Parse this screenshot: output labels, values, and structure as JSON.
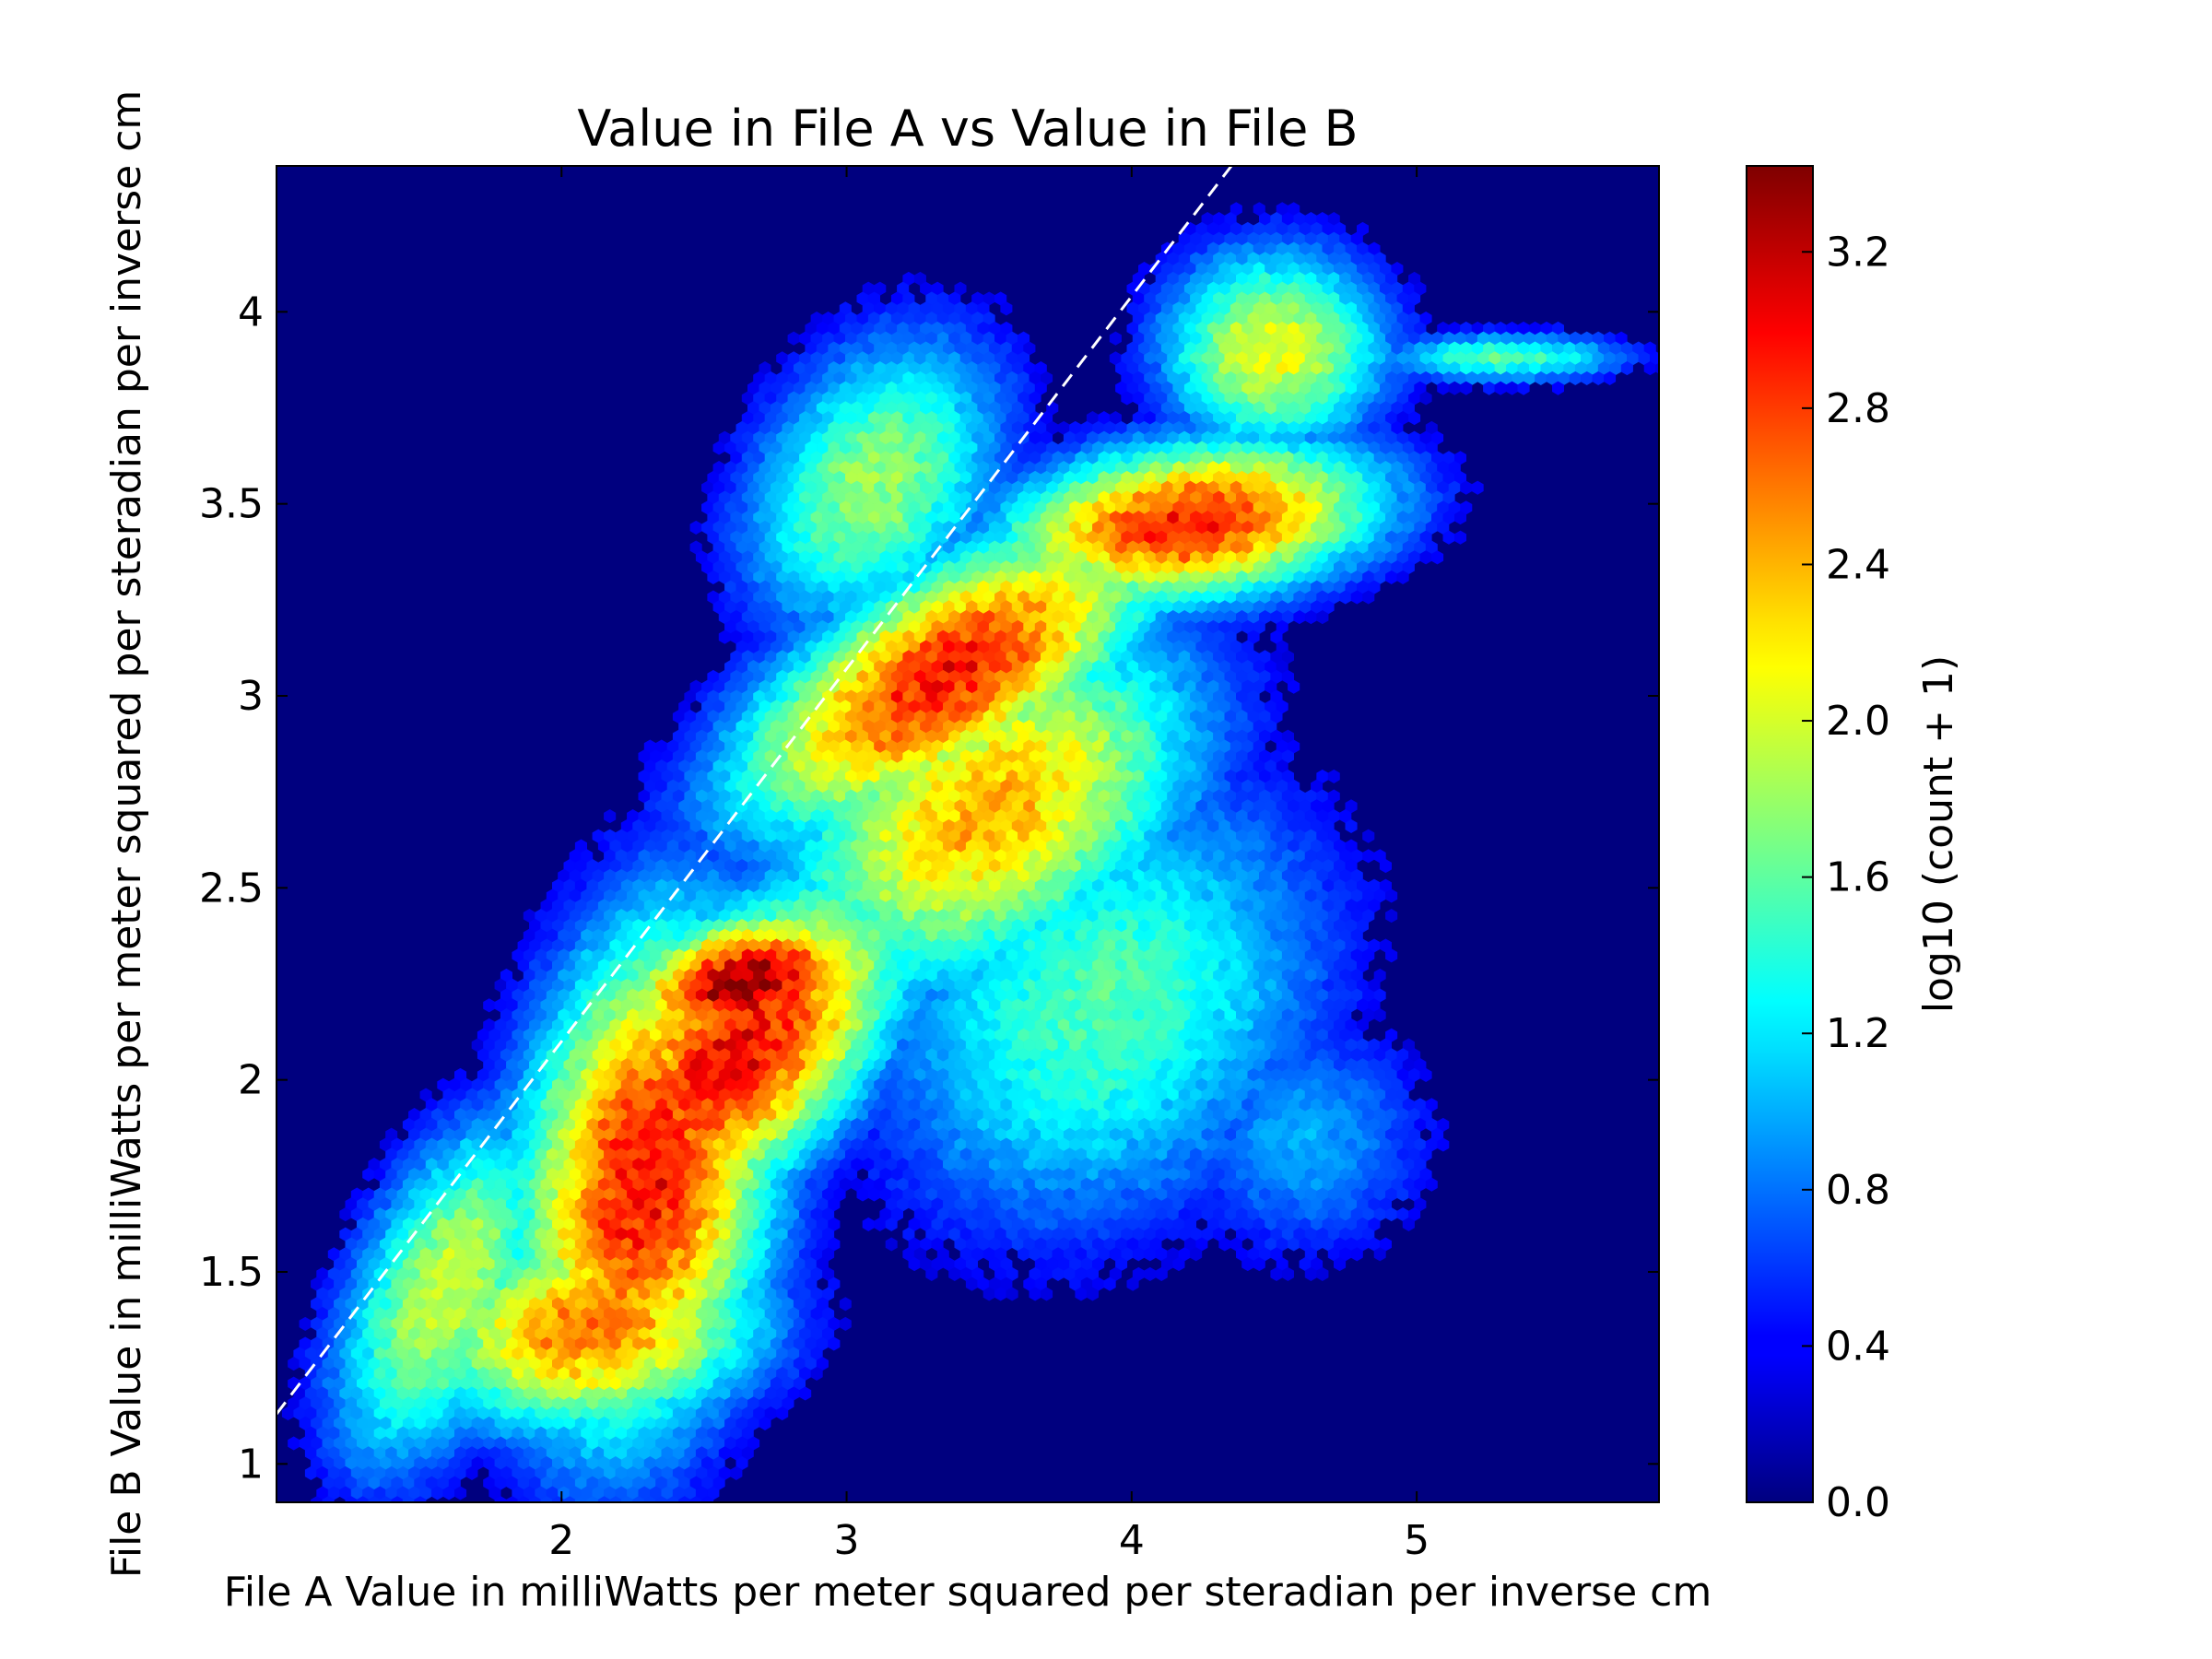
{
  "chart_data": {
    "type": "heatmap",
    "subtype": "hexbin",
    "title": "Value in File A vs Value in File B",
    "xlabel": "File A Value in milliWatts per meter squared per steradian per inverse cm",
    "ylabel": "File B Value in milliWatts per meter squared per steradian per inverse cm",
    "xlim": [
      1.0,
      5.85
    ],
    "ylim": [
      0.9,
      4.38
    ],
    "xticks": [
      2,
      3,
      4,
      5
    ],
    "xtick_labels": [
      "2",
      "3",
      "4",
      "5"
    ],
    "yticks": [
      1,
      1.5,
      2,
      2.5,
      3,
      3.5,
      4
    ],
    "ytick_labels": [
      "1",
      "1.5",
      "2",
      "2.5",
      "3",
      "3.5",
      "4"
    ],
    "background_color": "#00007f",
    "colormap": "jet",
    "colorbar": {
      "label": "log10 (count + 1)",
      "range": [
        0.0,
        3.42
      ],
      "ticks": [
        0.0,
        0.4,
        0.8,
        1.2,
        1.6,
        2.0,
        2.4,
        2.8,
        3.2
      ],
      "tick_labels": [
        "0.0",
        "0.4",
        "0.8",
        "1.2",
        "1.6",
        "2.0",
        "2.4",
        "2.8",
        "3.2"
      ]
    },
    "reference_line": {
      "style": "dashed",
      "color": "#ffffff",
      "x": [
        1.0,
        4.35
      ],
      "y": [
        1.13,
        4.38
      ]
    },
    "density_components": [
      {
        "cx": 2.65,
        "cy": 2.25,
        "sx": 0.32,
        "sy": 0.14,
        "rho": 0.3,
        "peak": 3.35
      },
      {
        "cx": 2.3,
        "cy": 1.75,
        "sx": 0.35,
        "sy": 0.5,
        "rho": 0.25,
        "peak": 3.0
      },
      {
        "cx": 2.6,
        "cy": 2.05,
        "sx": 0.45,
        "sy": 0.35,
        "rho": 0.6,
        "peak": 3.05
      },
      {
        "cx": 3.35,
        "cy": 3.05,
        "sx": 0.55,
        "sy": 0.3,
        "rho": 0.65,
        "peak": 2.95
      },
      {
        "cx": 4.2,
        "cy": 3.45,
        "sx": 0.5,
        "sy": 0.16,
        "rho": 0.25,
        "peak": 2.95
      },
      {
        "cx": 2.1,
        "cy": 1.35,
        "sx": 0.45,
        "sy": 0.2,
        "rho": 0.1,
        "peak": 2.6
      },
      {
        "cx": 3.5,
        "cy": 2.7,
        "sx": 0.55,
        "sy": 0.35,
        "rho": 0.4,
        "peak": 2.4
      },
      {
        "cx": 4.5,
        "cy": 3.9,
        "sx": 0.3,
        "sy": 0.2,
        "rho": 0.0,
        "peak": 2.1
      },
      {
        "cx": 3.1,
        "cy": 3.55,
        "sx": 0.35,
        "sy": 0.3,
        "rho": 0.3,
        "peak": 1.8
      },
      {
        "cx": 3.9,
        "cy": 2.2,
        "sx": 0.6,
        "sy": 0.45,
        "rho": 0.2,
        "peak": 1.55
      },
      {
        "cx": 1.6,
        "cy": 1.45,
        "sx": 0.3,
        "sy": 0.35,
        "rho": 0.5,
        "peak": 2.0
      },
      {
        "cx": 5.3,
        "cy": 3.88,
        "sx": 0.35,
        "sy": 0.05,
        "rho": 0.0,
        "peak": 1.55
      },
      {
        "cx": 4.6,
        "cy": 1.85,
        "sx": 0.35,
        "sy": 0.25,
        "rho": 0.0,
        "peak": 1.0
      }
    ]
  }
}
